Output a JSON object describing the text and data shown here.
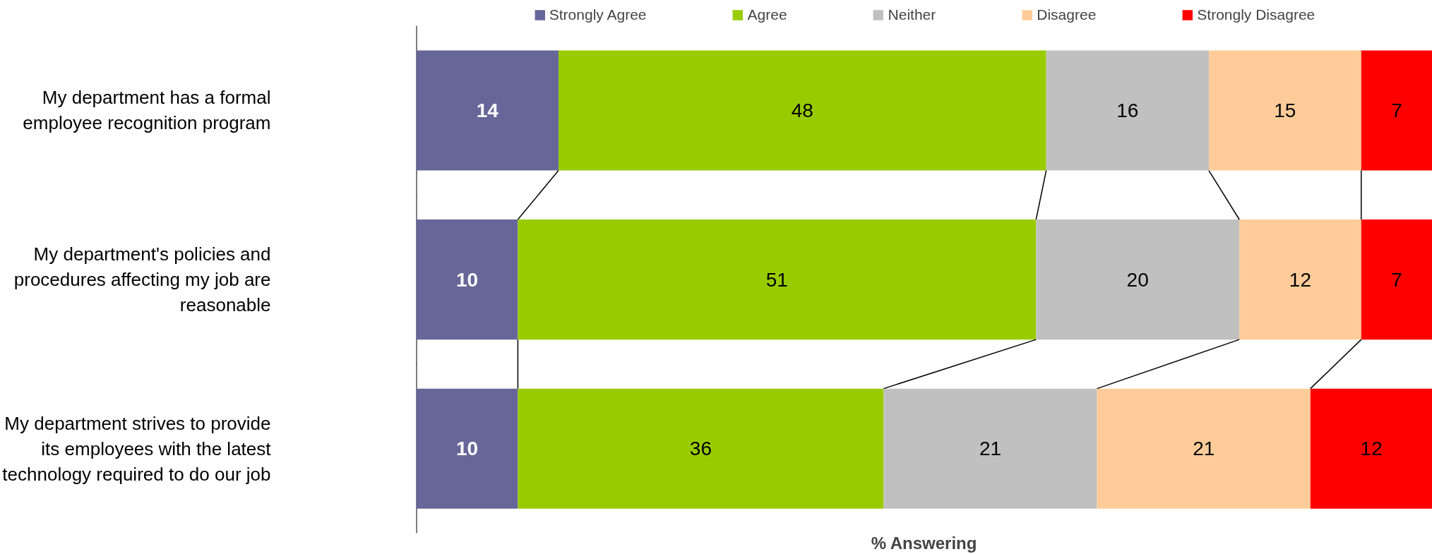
{
  "chart_data": {
    "type": "bar",
    "orientation": "horizontal",
    "stacked": true,
    "xlabel": "% Answering",
    "categories": [
      "My department has a formal employee recognition program",
      "My department's policies and procedures affecting my job are reasonable",
      "My department strives to provide its employees with the latest technology required to do our job"
    ],
    "series": [
      {
        "name": "Strongly Agree",
        "color": "#666699",
        "values": [
          14,
          10,
          10
        ]
      },
      {
        "name": "Agree",
        "color": "#99cc00",
        "values": [
          48,
          51,
          36
        ]
      },
      {
        "name": "Neither",
        "color": "#c0c0c0",
        "values": [
          16,
          20,
          21
        ]
      },
      {
        "name": "Disagree",
        "color": "#ffcc99",
        "values": [
          15,
          12,
          21
        ]
      },
      {
        "name": "Strongly Disagree",
        "color": "#ff0000",
        "values": [
          7,
          7,
          12
        ]
      }
    ],
    "data_labels": true,
    "legend": "top",
    "grid": false,
    "tick_labels": "y"
  }
}
